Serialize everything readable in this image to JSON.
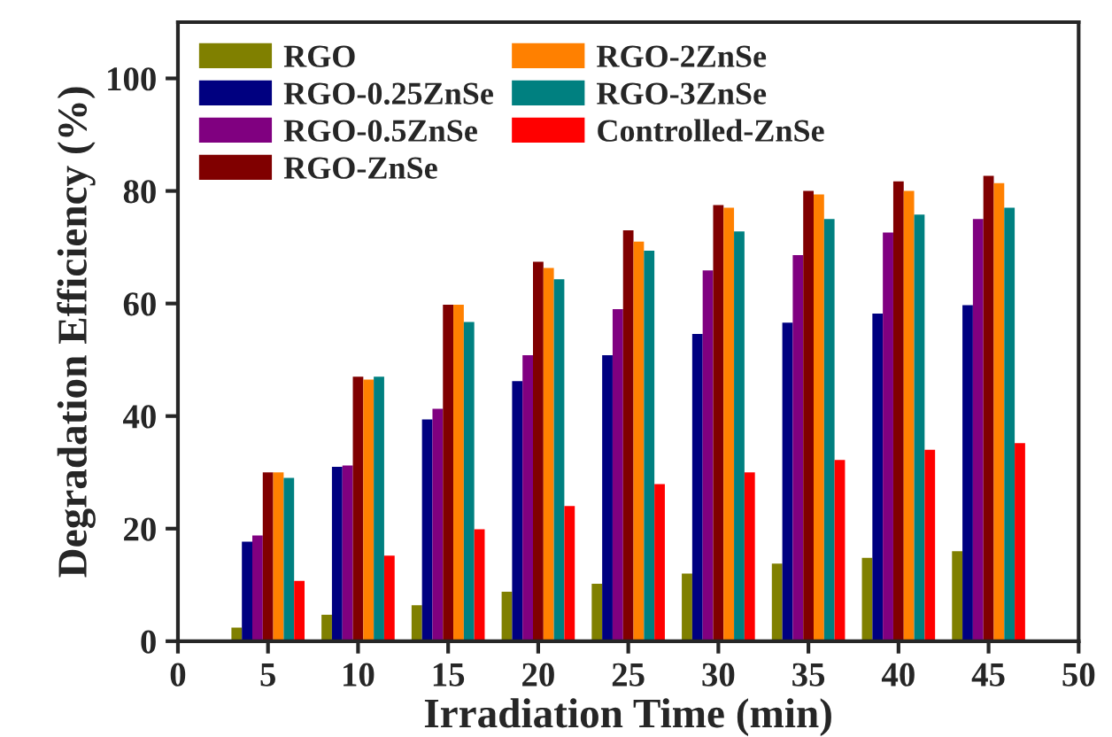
{
  "chart_data": {
    "type": "bar",
    "xlabel": "Irradiation Time (min)",
    "ylabel": "Degradation Efficiency (%)",
    "x": [
      5,
      10,
      15,
      20,
      25,
      30,
      35,
      40,
      45
    ],
    "xlim": [
      0,
      50
    ],
    "xticks": [
      0,
      5,
      10,
      15,
      20,
      25,
      30,
      35,
      40,
      45,
      50
    ],
    "ylim": [
      0,
      110
    ],
    "yticks": [
      0,
      20,
      40,
      60,
      80,
      100
    ],
    "grid": false,
    "legend": "top left",
    "series": [
      {
        "name": "RGO",
        "color": "#808000",
        "values": [
          2.4,
          4.7,
          6.4,
          8.8,
          10.2,
          12,
          13.8,
          14.8,
          16
        ]
      },
      {
        "name": "RGO-0.25ZnSe",
        "color": "#000080",
        "values": [
          17.7,
          31,
          39.4,
          46.2,
          50.8,
          54.6,
          56.6,
          58.2,
          59.7
        ]
      },
      {
        "name": "RGO-0.5ZnSe",
        "color": "#800080",
        "values": [
          18.8,
          31.2,
          41.3,
          50.8,
          59,
          65.9,
          68.6,
          72.6,
          75
        ]
      },
      {
        "name": "RGO-ZnSe",
        "color": "#800000",
        "values": [
          30,
          47,
          59.8,
          67.4,
          73,
          77.5,
          80,
          81.7,
          82.7
        ]
      },
      {
        "name": "RGO-2ZnSe",
        "color": "#ff8000",
        "values": [
          30,
          46.5,
          59.8,
          66.3,
          71,
          77,
          79.4,
          80,
          81.4
        ]
      },
      {
        "name": "RGO-3ZnSe",
        "color": "#008080",
        "values": [
          29,
          47,
          56.7,
          64.3,
          69.4,
          72.8,
          75,
          75.8,
          77
        ]
      },
      {
        "name": "Controlled-ZnSe",
        "color": "#ff0000",
        "values": [
          10.7,
          15.2,
          19.9,
          24,
          27.9,
          30,
          32.2,
          34,
          35.2
        ]
      }
    ]
  }
}
